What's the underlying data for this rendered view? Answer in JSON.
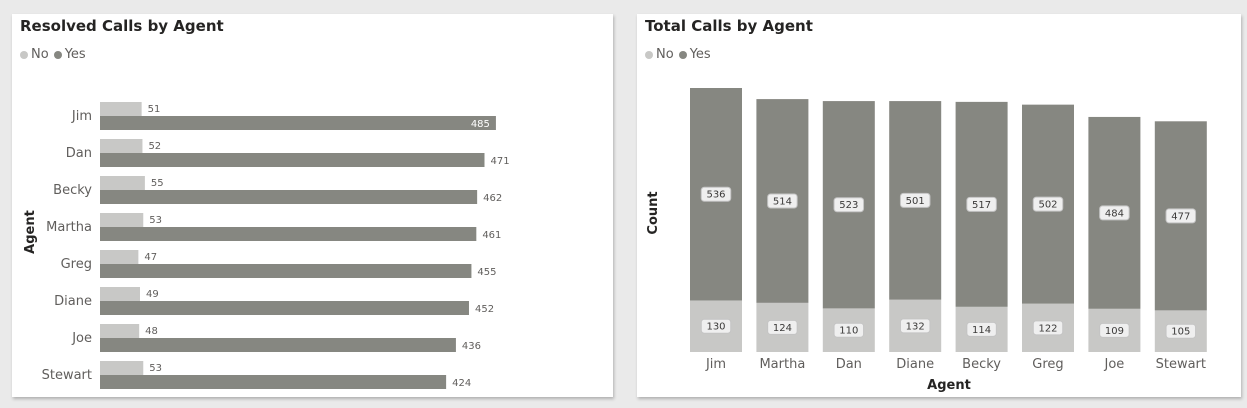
{
  "chart_data": [
    {
      "type": "bar",
      "orientation": "horizontal",
      "title": "Resolved Calls by Agent",
      "ylabel": "Agent",
      "legend": {
        "title": "",
        "placement": "top-left"
      },
      "categories": [
        "Jim",
        "Dan",
        "Becky",
        "Martha",
        "Greg",
        "Diane",
        "Joe",
        "Stewart"
      ],
      "series": [
        {
          "name": "No",
          "color": "#c8c8c6",
          "values": [
            51,
            52,
            55,
            53,
            47,
            49,
            48,
            53
          ]
        },
        {
          "name": "Yes",
          "color": "#868781",
          "values": [
            485,
            471,
            462,
            461,
            455,
            452,
            436,
            424
          ]
        }
      ],
      "xlim": [
        0,
        490
      ]
    },
    {
      "type": "bar",
      "orientation": "vertical",
      "stacked": true,
      "title": "Total Calls by Agent",
      "xlabel": "Agent",
      "ylabel": "Count",
      "legend": {
        "title": "",
        "placement": "top-left"
      },
      "categories": [
        "Jim",
        "Martha",
        "Dan",
        "Diane",
        "Becky",
        "Greg",
        "Joe",
        "Stewart"
      ],
      "series": [
        {
          "name": "No",
          "color": "#c8c8c6",
          "values": [
            130,
            124,
            110,
            132,
            114,
            122,
            109,
            105
          ]
        },
        {
          "name": "Yes",
          "color": "#868781",
          "values": [
            536,
            514,
            523,
            501,
            517,
            502,
            484,
            477
          ]
        }
      ],
      "ylim": [
        0,
        666
      ]
    }
  ]
}
